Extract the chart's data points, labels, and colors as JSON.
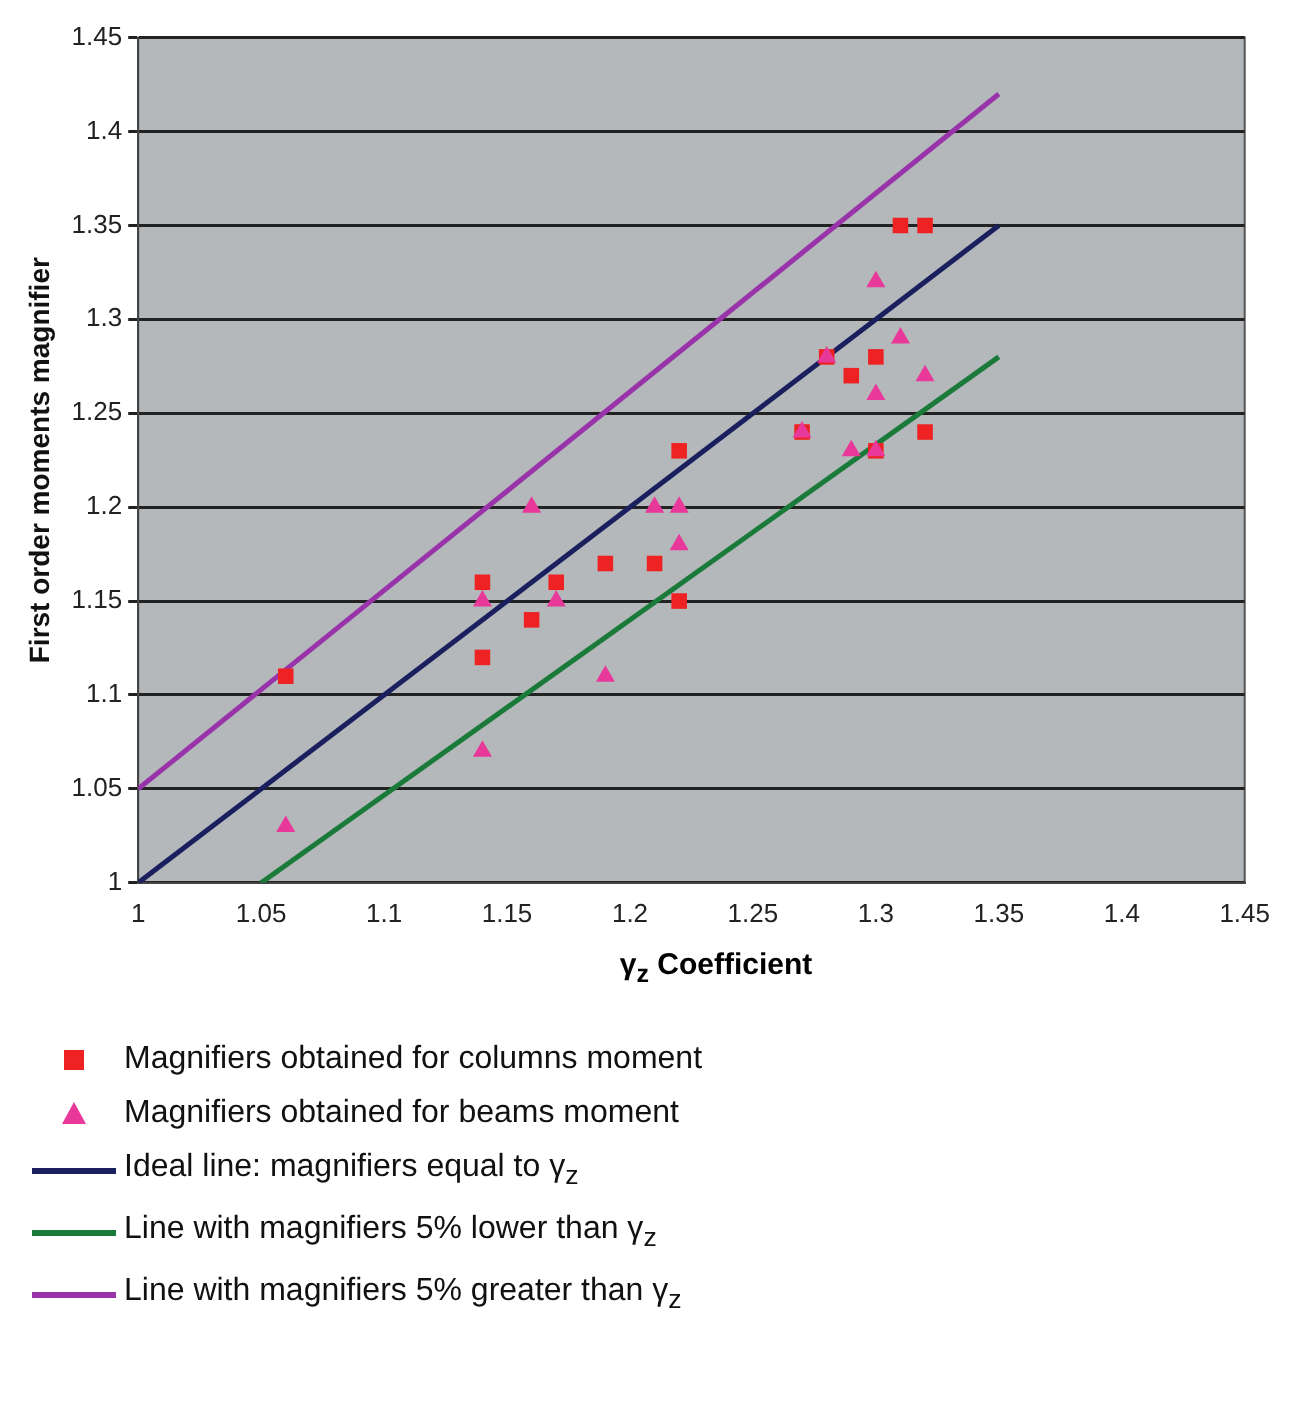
{
  "chart_data": {
    "type": "scatter",
    "xlabel": "γ$_{z}$ Coefficient",
    "ylabel": "First order moments magnifier",
    "xlim": [
      1,
      1.45
    ],
    "xticks": [
      1,
      1.05,
      1.1,
      1.15,
      1.2,
      1.25,
      1.3,
      1.35,
      1.4,
      1.45
    ],
    "ylim": [
      1,
      1.45
    ],
    "yticks": [
      1,
      1.05,
      1.1,
      1.15,
      1.2,
      1.25,
      1.3,
      1.35,
      1.4,
      1.45
    ],
    "grid": "y",
    "legend": "bottom",
    "series": [
      {
        "name": "Magnifiers obtained for columns moment",
        "marker": "square",
        "color": "#ee2222",
        "x": [
          1.06,
          1.14,
          1.14,
          1.16,
          1.17,
          1.19,
          1.21,
          1.22,
          1.22,
          1.27,
          1.28,
          1.29,
          1.3,
          1.3,
          1.31,
          1.32,
          1.32
        ],
        "values": [
          1.11,
          1.16,
          1.12,
          1.14,
          1.16,
          1.17,
          1.17,
          1.23,
          1.15,
          1.24,
          1.28,
          1.27,
          1.28,
          1.23,
          1.35,
          1.35,
          1.24
        ]
      },
      {
        "name": "Magnifiers obtained for beams moment",
        "marker": "triangle",
        "color": "#e8399a",
        "x": [
          1.06,
          1.14,
          1.14,
          1.16,
          1.17,
          1.19,
          1.21,
          1.22,
          1.22,
          1.27,
          1.28,
          1.29,
          1.3,
          1.3,
          1.3,
          1.31,
          1.32
        ],
        "values": [
          1.03,
          1.15,
          1.07,
          1.2,
          1.15,
          1.11,
          1.2,
          1.2,
          1.18,
          1.24,
          1.28,
          1.23,
          1.23,
          1.26,
          1.32,
          1.29,
          1.27
        ]
      },
      {
        "name": "Ideal line: magnifiers equal to γ$_{z}$",
        "type": "line",
        "marker": "none",
        "color": "#1a1f5e",
        "x": [
          1,
          1.35
        ],
        "values": [
          1,
          1.35
        ]
      },
      {
        "name": "Line with magnifiers 5% lower than γ$_{z}$",
        "type": "line",
        "marker": "none",
        "color": "#1a7a3a",
        "x": [
          1.05,
          1.35
        ],
        "values": [
          1,
          1.28
        ]
      },
      {
        "name": "Line with magnifiers 5% greater than γ$_{z}$",
        "type": "line",
        "marker": "none",
        "color": "#9933aa",
        "x": [
          1,
          1.35
        ],
        "values": [
          1.05,
          1.42
        ]
      }
    ]
  }
}
